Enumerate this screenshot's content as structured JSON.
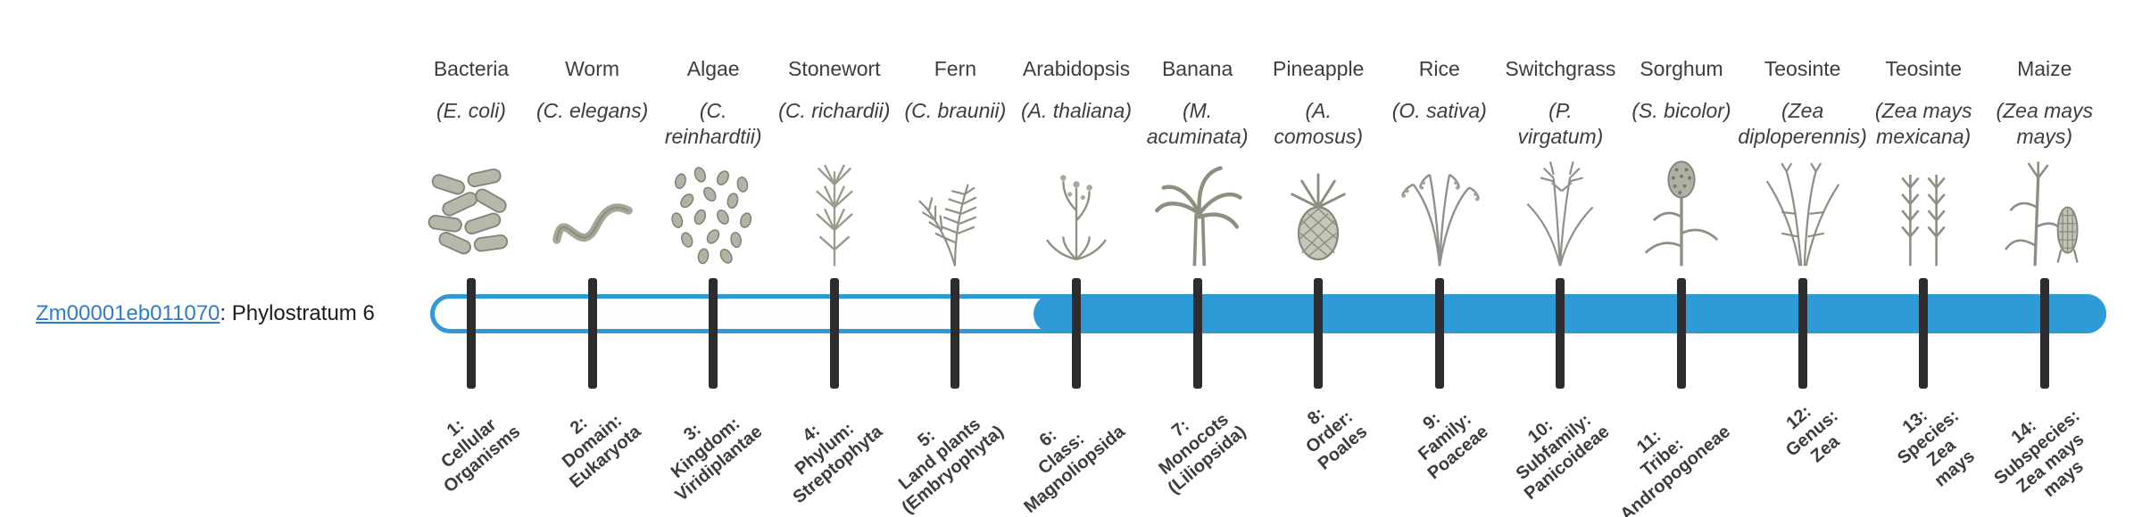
{
  "gene_label": {
    "link": "Zm00001eb011070",
    "suffix": ": Phylostratum 6"
  },
  "timeline": {
    "fill_start_stratum": 6,
    "total_strata": 14
  },
  "colors": {
    "bar_blue": "#2E9AD6",
    "tick": "#2d2d2d",
    "link_blue": "#2b7cd3",
    "icon_gray": "#8d8d80",
    "label_text": "#3c3c3c"
  },
  "organisms": [
    {
      "name": "Bacteria",
      "sci": "(E. coli)",
      "icon": "bacteria-icon",
      "stratum_label": "1:\nCellular\nOrganisms"
    },
    {
      "name": "Worm",
      "sci": "(C. elegans)",
      "icon": "worm-icon",
      "stratum_label": "2:\nDomain:\nEukaryota"
    },
    {
      "name": "Algae",
      "sci": "(C.\nreinhardtii)",
      "icon": "algae-icon",
      "stratum_label": "3:\nKingdom:\nViridiplantae"
    },
    {
      "name": "Stonewort",
      "sci": "(C. richardii)",
      "icon": "stonewort-icon",
      "stratum_label": "4:\nPhylum:\nStreptophyta"
    },
    {
      "name": "Fern",
      "sci": "(C. braunii)",
      "icon": "fern-icon",
      "stratum_label": "5:\nLand plants\n(Embryophyta)"
    },
    {
      "name": "Arabidopsis",
      "sci": "(A. thaliana)",
      "icon": "arabidopsis-icon",
      "stratum_label": "6:\nClass:\nMagnoliopsida"
    },
    {
      "name": "Banana",
      "sci": "(M.\nacuminata)",
      "icon": "banana-icon",
      "stratum_label": "7:\nMonocots\n(Liliopsida)"
    },
    {
      "name": "Pineapple",
      "sci": "(A.\ncomosus)",
      "icon": "pineapple-icon",
      "stratum_label": "8:\nOrder:\nPoales"
    },
    {
      "name": "Rice",
      "sci": "(O. sativa)",
      "icon": "rice-icon",
      "stratum_label": "9:\nFamily:\nPoaceae"
    },
    {
      "name": "Switchgrass",
      "sci": "(P.\nvirgatum)",
      "icon": "switchgrass-icon",
      "stratum_label": "10:\nSubfamily:\nPanicoideae"
    },
    {
      "name": "Sorghum",
      "sci": "(S. bicolor)",
      "icon": "sorghum-icon",
      "stratum_label": "11:\nTribe:\nAndropogoneae"
    },
    {
      "name": "Teosinte",
      "sci": "(Zea\ndiploperennis)",
      "icon": "teosinte-diploperennis-icon",
      "stratum_label": "12:\nGenus:\nZea"
    },
    {
      "name": "Teosinte",
      "sci": "(Zea mays\nmexicana)",
      "icon": "teosinte-mexicana-icon",
      "stratum_label": "13:\nSpecies:\nZea\nmays"
    },
    {
      "name": "Maize",
      "sci": "(Zea mays\nmays)",
      "icon": "maize-icon",
      "stratum_label": "14:\nSubspecies:\nZea mays\nmays"
    }
  ]
}
